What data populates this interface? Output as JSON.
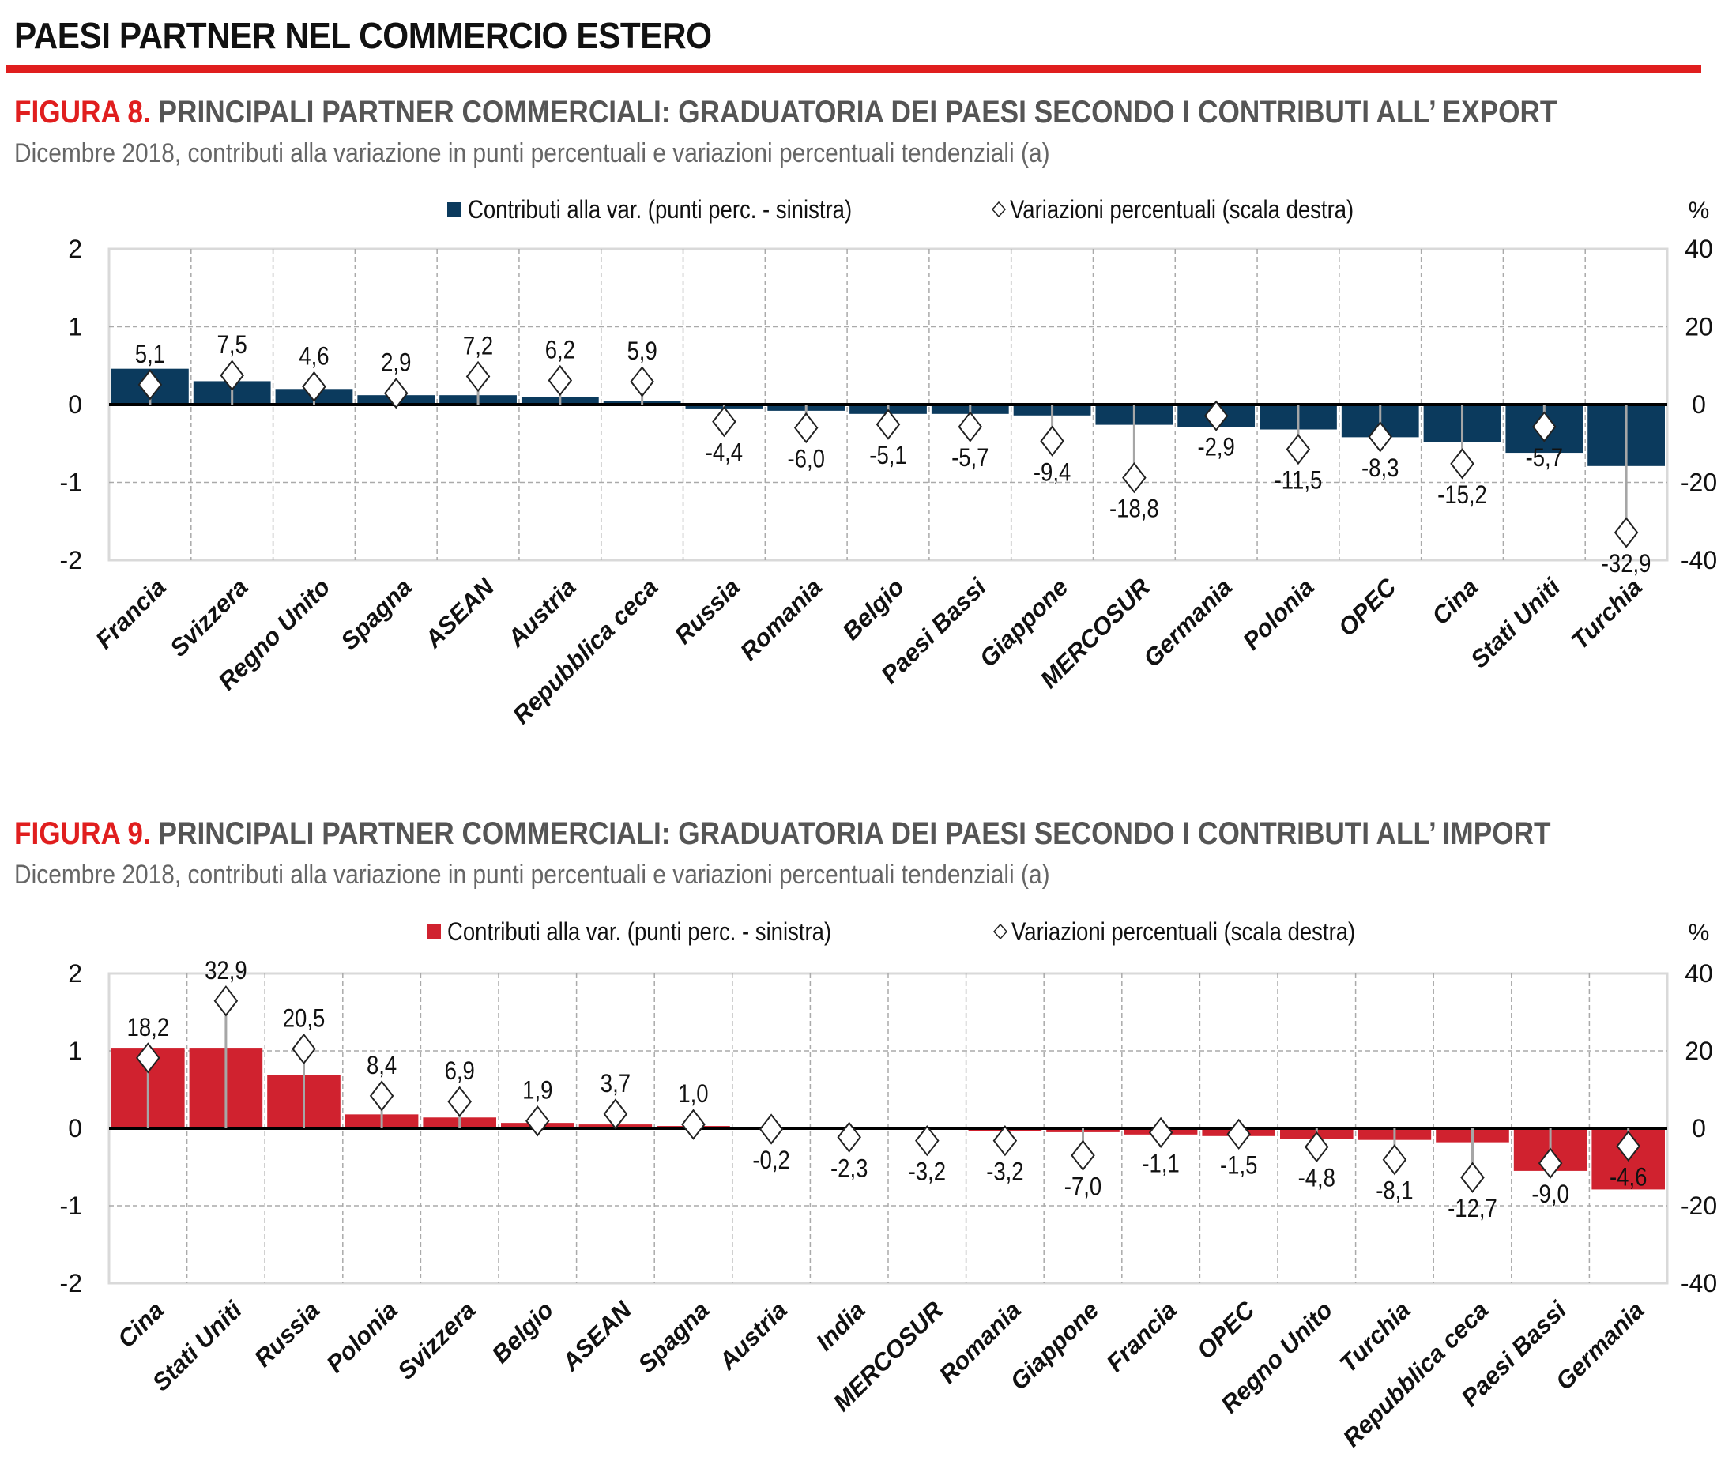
{
  "page": {
    "title": "PAESI PARTNER NEL COMMERCIO ESTERO",
    "accent_color": "#e01e1e"
  },
  "figures": [
    {
      "number_label": "FIGURA 8.",
      "title": "PRINCIPALI PARTNER COMMERCIALI: GRADUATORIA DEI PAESI SECONDO I CONTRIBUTI ALL’ EXPORT",
      "subtitle": "Dicembre 2018, contributi alla variazione in punti percentuali e variazioni percentuali tendenziali (a)"
    },
    {
      "number_label": "FIGURA 9.",
      "title": "PRINCIPALI PARTNER COMMERCIALI: GRADUATORIA DEI PAESI SECONDO I CONTRIBUTI ALL’ IMPORT",
      "subtitle": "Dicembre 2018, contributi alla variazione in punti percentuali e variazioni percentuali tendenziali (a)"
    }
  ],
  "chart_data": [
    {
      "type": "bar",
      "title": "FIGURA 8. PRINCIPALI PARTNER COMMERCIALI: GRADUATORIA DEI PAESI SECONDO I CONTRIBUTI ALL’ EXPORT",
      "categories": [
        "Francia",
        "Svizzera",
        "Regno Unito",
        "Spagna",
        "ASEAN",
        "Austria",
        "Repubblica ceca",
        "Russia",
        "Romania",
        "Belgio",
        "Paesi Bassi",
        "Giappone",
        "MERCOSUR",
        "Germania",
        "Polonia",
        "OPEC",
        "Cina",
        "Stati Uniti",
        "Turchia"
      ],
      "series": [
        {
          "name": "Contributi alla var. (punti perc. - sinistra)",
          "axis": "left",
          "kind": "bar",
          "color": "#0b3a5d",
          "values": [
            0.46,
            0.3,
            0.2,
            0.12,
            0.12,
            0.1,
            0.05,
            -0.05,
            -0.08,
            -0.12,
            -0.12,
            -0.14,
            -0.26,
            -0.29,
            -0.32,
            -0.42,
            -0.48,
            -0.62,
            -0.79
          ]
        },
        {
          "name": "Variazioni percentuali (scala destra)",
          "axis": "right",
          "kind": "marker",
          "marker": "diamond",
          "values": [
            5.1,
            7.5,
            4.6,
            2.9,
            7.2,
            6.2,
            5.9,
            -4.4,
            -6.0,
            -5.1,
            -5.7,
            -9.4,
            -18.8,
            -2.9,
            -11.5,
            -8.3,
            -15.2,
            -5.7,
            -32.9
          ],
          "labels": [
            "5,1",
            "7,5",
            "4,6",
            "2,9",
            "7,2",
            "6,2",
            "5,9",
            "-4,4",
            "-6,0",
            "-5,1",
            "-5,7",
            "-9,4",
            "-18,8",
            "-2,9",
            "-11,5",
            "-8,3",
            "-15,2",
            "-5,7",
            "-32,9"
          ]
        }
      ],
      "left_axis": {
        "ylim": [
          -2,
          2
        ],
        "ticks": [
          "2",
          "1",
          "0",
          "-1",
          "-2"
        ]
      },
      "right_axis": {
        "ylim": [
          -40,
          40
        ],
        "ticks": [
          "40",
          "20",
          "0",
          "-20",
          "-40"
        ],
        "unit_label": "%"
      },
      "grid": true,
      "legend_position": "top"
    },
    {
      "type": "bar",
      "title": "FIGURA 9. PRINCIPALI PARTNER COMMERCIALI: GRADUATORIA DEI PAESI SECONDO I CONTRIBUTI ALL’ IMPORT",
      "categories": [
        "Cina",
        "Stati Uniti",
        "Russia",
        "Polonia",
        "Svizzera",
        "Belgio",
        "ASEAN",
        "Spagna",
        "Austria",
        "India",
        "MERCOSUR",
        "Romania",
        "Giappone",
        "Francia",
        "OPEC",
        "Regno Unito",
        "Turchia",
        "Repubblica ceca",
        "Paesi Bassi",
        "Germania"
      ],
      "series": [
        {
          "name": "Contributi alla var. (punti perc. - sinistra)",
          "axis": "left",
          "kind": "bar",
          "color": "#d0222f",
          "values": [
            1.04,
            1.04,
            0.69,
            0.18,
            0.14,
            0.07,
            0.05,
            0.03,
            0.0,
            0.0,
            0.0,
            -0.04,
            -0.05,
            -0.08,
            -0.1,
            -0.14,
            -0.15,
            -0.18,
            -0.55,
            -0.79
          ]
        },
        {
          "name": "Variazioni percentuali (scala destra)",
          "axis": "right",
          "kind": "marker",
          "marker": "diamond",
          "values": [
            18.2,
            32.9,
            20.5,
            8.4,
            6.9,
            1.9,
            3.7,
            1.0,
            -0.2,
            -2.3,
            -3.2,
            -3.2,
            -7.0,
            -1.1,
            -1.5,
            -4.8,
            -8.1,
            -12.7,
            -9.0,
            -4.6
          ],
          "labels": [
            "18,2",
            "32,9",
            "20,5",
            "8,4",
            "6,9",
            "1,9",
            "3,7",
            "1,0",
            "-0,2",
            "-2,3",
            "-3,2",
            "-3,2",
            "-7,0",
            "-1,1",
            "-1,5",
            "-4,8",
            "-8,1",
            "-12,7",
            "-9,0",
            "-4,6"
          ]
        }
      ],
      "left_axis": {
        "ylim": [
          -2,
          2
        ],
        "ticks": [
          "2",
          "1",
          "0",
          "-1",
          "-2"
        ]
      },
      "right_axis": {
        "ylim": [
          -40,
          40
        ],
        "ticks": [
          "40",
          "20",
          "0",
          "-20",
          "-40"
        ],
        "unit_label": "%"
      },
      "grid": true,
      "legend_position": "top"
    }
  ]
}
